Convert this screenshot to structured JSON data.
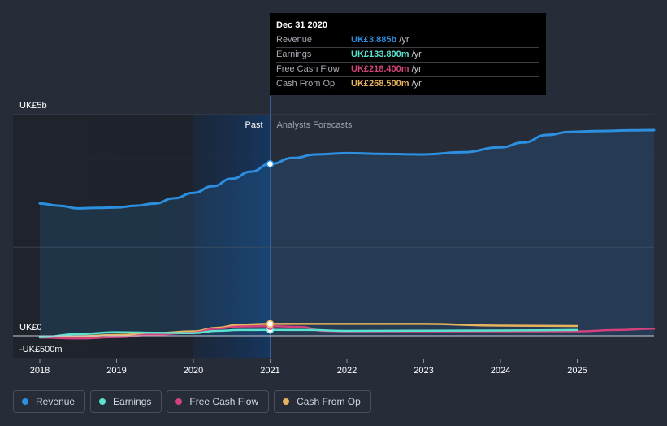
{
  "chart_data": {
    "type": "line",
    "title": "",
    "y_axis": {
      "top_label": "UK£5b",
      "zero_label": "UK£0",
      "bottom_label": "-UK£500m",
      "ylim": [
        -500,
        5000
      ],
      "unit": "UK£m"
    },
    "x_ticks": [
      "2018",
      "2019",
      "2020",
      "2021",
      "2022",
      "2023",
      "2024",
      "2025"
    ],
    "regions": {
      "past_label": "Past",
      "forecast_label": "Analysts Forecasts",
      "divider_x": 2021.0
    },
    "series": [
      {
        "name": "Revenue",
        "color": "#2d8fe0",
        "points": [
          [
            2018.0,
            2990
          ],
          [
            2018.25,
            2940
          ],
          [
            2018.5,
            2880
          ],
          [
            2018.75,
            2890
          ],
          [
            2019.0,
            2900
          ],
          [
            2019.25,
            2940
          ],
          [
            2019.5,
            2990
          ],
          [
            2019.75,
            3110
          ],
          [
            2020.0,
            3230
          ],
          [
            2020.25,
            3380
          ],
          [
            2020.5,
            3550
          ],
          [
            2020.75,
            3710
          ],
          [
            2021.0,
            3885
          ],
          [
            2021.3,
            4020
          ],
          [
            2021.6,
            4100
          ],
          [
            2022.0,
            4130
          ],
          [
            2022.5,
            4110
          ],
          [
            2023.0,
            4100
          ],
          [
            2023.5,
            4150
          ],
          [
            2024.0,
            4260
          ],
          [
            2024.3,
            4370
          ],
          [
            2024.6,
            4540
          ],
          [
            2024.9,
            4610
          ],
          [
            2025.3,
            4630
          ],
          [
            2025.7,
            4645
          ],
          [
            2026.0,
            4650
          ]
        ]
      },
      {
        "name": "Earnings",
        "color": "#5ce3d0",
        "points": [
          [
            2018.0,
            -30
          ],
          [
            2018.5,
            40
          ],
          [
            2019.0,
            80
          ],
          [
            2019.5,
            70
          ],
          [
            2020.0,
            60
          ],
          [
            2020.3,
            110
          ],
          [
            2020.6,
            130
          ],
          [
            2021.0,
            133.8
          ],
          [
            2021.5,
            130
          ],
          [
            2022.0,
            110
          ],
          [
            2023.0,
            115
          ],
          [
            2024.0,
            120
          ],
          [
            2025.0,
            130
          ]
        ]
      },
      {
        "name": "Free Cash Flow",
        "color": "#d2427c",
        "points": [
          [
            2018.0,
            -40
          ],
          [
            2018.5,
            -60
          ],
          [
            2019.0,
            -30
          ],
          [
            2019.5,
            30
          ],
          [
            2020.0,
            70
          ],
          [
            2020.3,
            160
          ],
          [
            2020.6,
            210
          ],
          [
            2021.0,
            218.4
          ],
          [
            2021.4,
            200
          ],
          [
            2021.7,
            110
          ],
          [
            2022.0,
            100
          ],
          [
            2023.0,
            100
          ],
          [
            2024.0,
            100
          ],
          [
            2025.0,
            100
          ],
          [
            2025.5,
            130
          ],
          [
            2026.0,
            160
          ]
        ]
      },
      {
        "name": "Cash From Op",
        "color": "#e8b35e",
        "points": [
          [
            2018.0,
            -20
          ],
          [
            2018.5,
            -10
          ],
          [
            2019.0,
            20
          ],
          [
            2019.5,
            60
          ],
          [
            2020.0,
            100
          ],
          [
            2020.3,
            180
          ],
          [
            2020.6,
            250
          ],
          [
            2021.0,
            268.5
          ],
          [
            2021.5,
            268
          ],
          [
            2022.0,
            268
          ],
          [
            2023.0,
            268
          ],
          [
            2024.0,
            230
          ],
          [
            2025.0,
            220
          ]
        ]
      }
    ]
  },
  "tooltip": {
    "date": "Dec 31 2020",
    "rows": [
      {
        "label": "Revenue",
        "value": "UK£3.885b",
        "unit": "/yr",
        "color": "#2d8fe0"
      },
      {
        "label": "Earnings",
        "value": "UK£133.800m",
        "unit": "/yr",
        "color": "#5ce3d0"
      },
      {
        "label": "Free Cash Flow",
        "value": "UK£218.400m",
        "unit": "/yr",
        "color": "#d2427c"
      },
      {
        "label": "Cash From Op",
        "value": "UK£268.500m",
        "unit": "/yr",
        "color": "#e8b35e"
      }
    ]
  },
  "legend": [
    {
      "label": "Revenue",
      "color": "#2d8fe0"
    },
    {
      "label": "Earnings",
      "color": "#5ce3d0"
    },
    {
      "label": "Free Cash Flow",
      "color": "#d2427c"
    },
    {
      "label": "Cash From Op",
      "color": "#e8b35e"
    }
  ]
}
